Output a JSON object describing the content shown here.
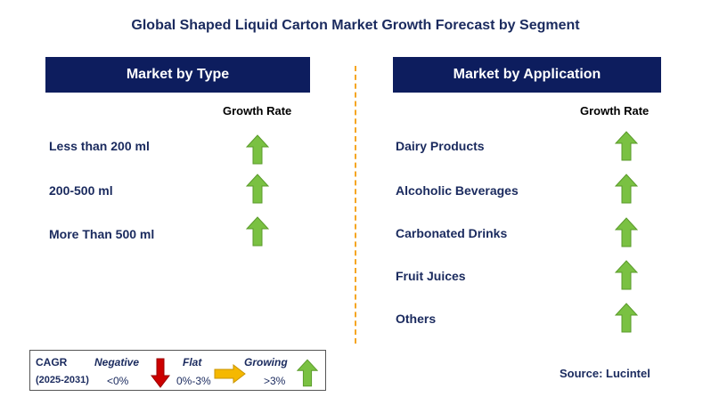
{
  "title": "Global Shaped Liquid Carton Market Growth Forecast by Segment",
  "left_panel": {
    "header": "Market by Type",
    "growth_label": "Growth Rate",
    "rows": [
      {
        "label": "Less than 200 ml",
        "trend": "growing"
      },
      {
        "label": "200-500 ml",
        "trend": "growing"
      },
      {
        "label": "More Than 500 ml",
        "trend": "growing"
      }
    ]
  },
  "right_panel": {
    "header": "Market by Application",
    "growth_label": "Growth Rate",
    "rows": [
      {
        "label": "Dairy Products",
        "trend": "growing"
      },
      {
        "label": "Alcoholic Beverages",
        "trend": "growing"
      },
      {
        "label": "Carbonated Drinks",
        "trend": "growing"
      },
      {
        "label": "Fruit Juices",
        "trend": "growing"
      },
      {
        "label": "Others",
        "trend": "growing"
      }
    ]
  },
  "legend": {
    "cagr": "CAGR",
    "period": "(2025-2031)",
    "negative": {
      "label": "Negative",
      "value": "<0%",
      "icon": "down-arrow-icon",
      "color": "#cc0000"
    },
    "flat": {
      "label": "Flat",
      "value": "0%-3%",
      "icon": "right-arrow-icon",
      "color": "#f5b800"
    },
    "growing": {
      "label": "Growing",
      "value": ">3%",
      "icon": "up-arrow-icon",
      "color": "#7ac142"
    }
  },
  "source": "Source: Lucintel",
  "colors": {
    "header_bg": "#0d1d5e",
    "text": "#1a2a5e",
    "divider": "#f5a623",
    "up_arrow": "#7ac142"
  }
}
